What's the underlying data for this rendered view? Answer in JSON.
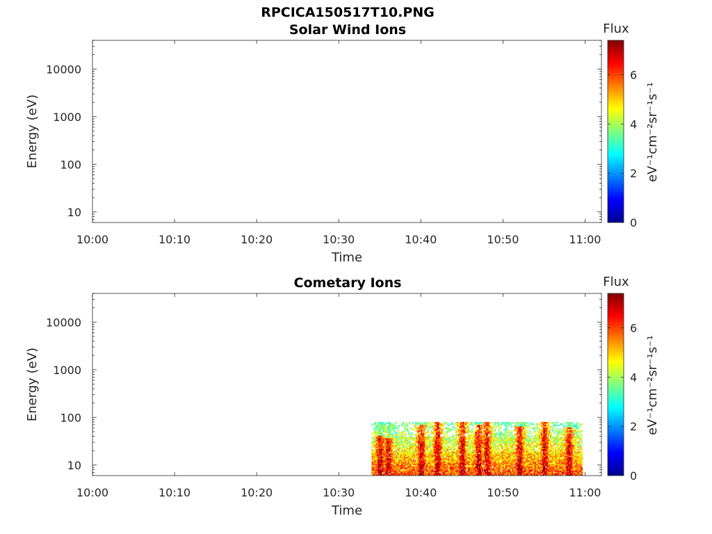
{
  "figure": {
    "title": "RPCICA150517T10.PNG"
  },
  "colorbar": {
    "label": "Flux",
    "unit_label": "eV⁻¹cm⁻²sr⁻¹s⁻¹",
    "ticks": [
      "0",
      "2",
      "4",
      "6"
    ],
    "range": [
      0,
      7.4
    ],
    "colormap": "jet"
  },
  "chart_data": [
    {
      "type": "heatmap",
      "title": "Solar Wind Ions",
      "xlabel": "Time",
      "ylabel": "Energy (eV)",
      "x_ticks": [
        "10:00",
        "10:10",
        "10:20",
        "10:30",
        "10:40",
        "10:50",
        "11:00"
      ],
      "x_range_minutes": [
        0,
        62
      ],
      "y_ticks": [
        "10",
        "100",
        "1000",
        "10000"
      ],
      "y_scale": "log",
      "y_range": [
        6,
        40000
      ],
      "cells": []
    },
    {
      "type": "heatmap",
      "title": "Cometary Ions",
      "xlabel": "Time",
      "ylabel": "Energy (eV)",
      "x_ticks": [
        "10:00",
        "10:10",
        "10:20",
        "10:30",
        "10:40",
        "10:50",
        "11:00"
      ],
      "x_range_minutes": [
        0,
        62
      ],
      "y_ticks": [
        "10",
        "100",
        "1000",
        "10000"
      ],
      "y_scale": "log",
      "y_range": [
        6,
        40000
      ],
      "signal_start": "10:34",
      "signal_end": "10:59",
      "signal_max_energy_eV": 80,
      "intense_bursts": [
        {
          "time": "10:35",
          "peak_energy_eV": 40
        },
        {
          "time": "10:36",
          "peak_energy_eV": 35
        },
        {
          "time": "10:40",
          "peak_energy_eV": 70
        },
        {
          "time": "10:42",
          "peak_energy_eV": 75
        },
        {
          "time": "10:45",
          "peak_energy_eV": 80
        },
        {
          "time": "10:47",
          "peak_energy_eV": 70
        },
        {
          "time": "10:48",
          "peak_energy_eV": 75
        },
        {
          "time": "10:52",
          "peak_energy_eV": 65
        },
        {
          "time": "10:55",
          "peak_energy_eV": 80
        },
        {
          "time": "10:58",
          "peak_energy_eV": 60
        }
      ]
    }
  ]
}
